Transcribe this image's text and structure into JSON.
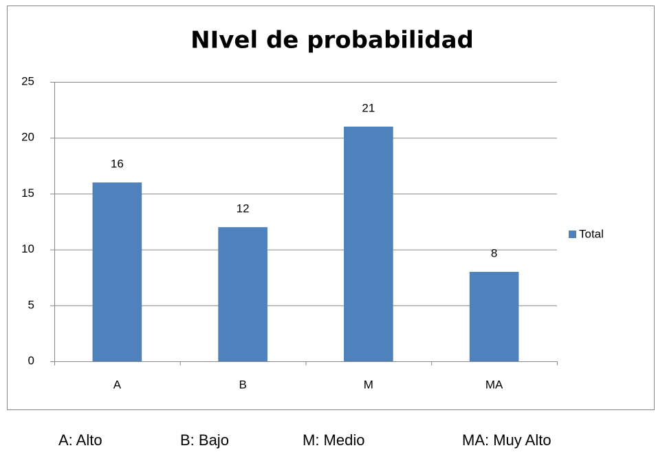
{
  "chart_data": {
    "type": "bar",
    "title": "NIvel de probabilidad",
    "categories": [
      "A",
      "B",
      "M",
      "MA"
    ],
    "series": [
      {
        "name": "Total",
        "color": "#4f81bd",
        "values": [
          16,
          12,
          21,
          8
        ]
      }
    ],
    "ylim": [
      0,
      25
    ],
    "yticks": [
      0,
      5,
      10,
      15,
      20,
      25
    ],
    "grid": true,
    "legend": "right",
    "notes": [
      "A: Alto",
      "B: Bajo",
      "M: Medio",
      "MA: Muy Alto"
    ]
  }
}
